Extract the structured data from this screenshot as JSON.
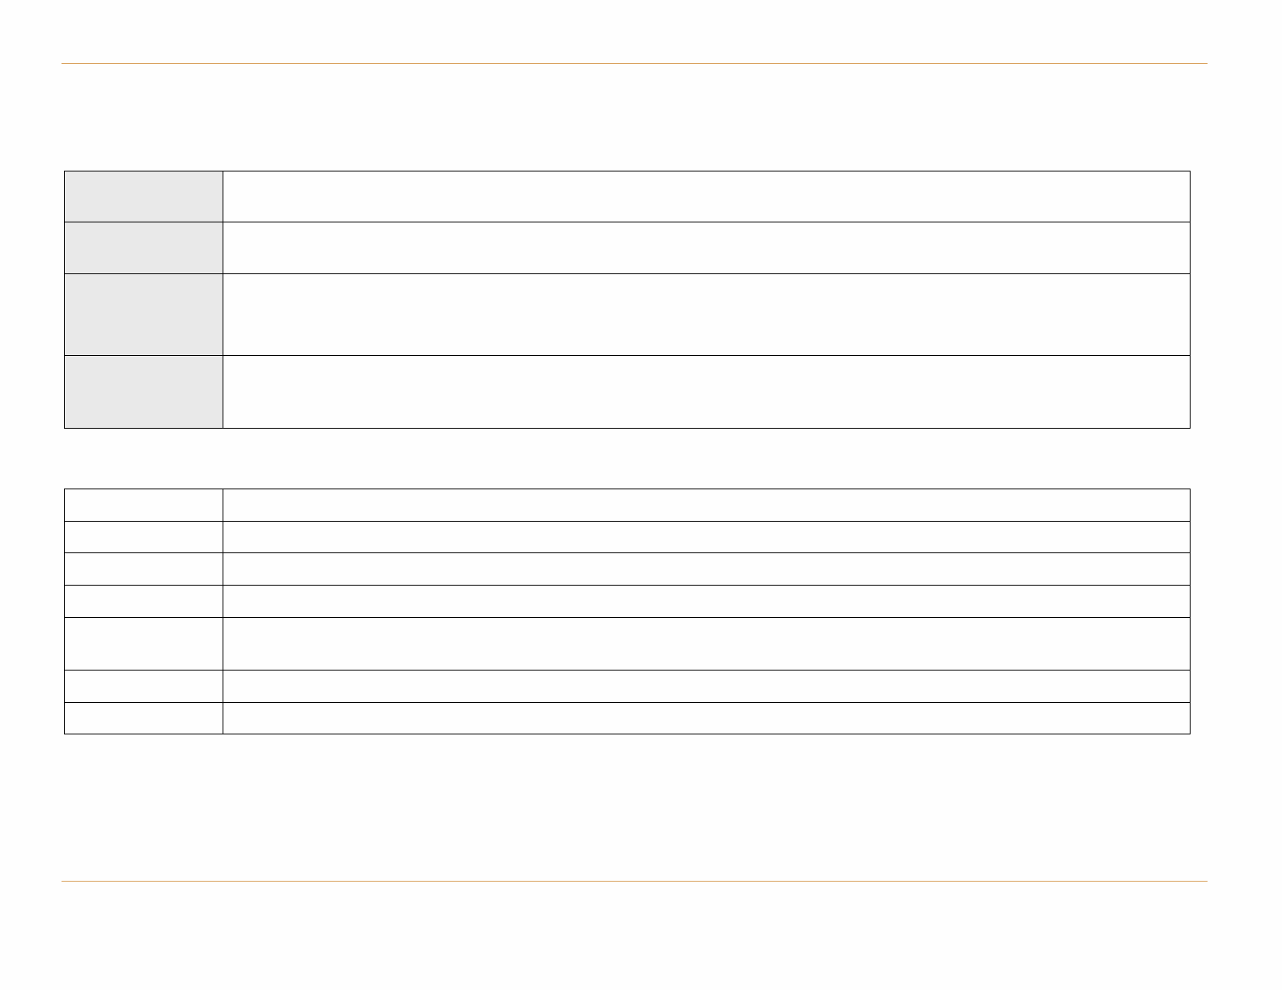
{
  "colors": {
    "rule": "#d9a25e",
    "label_cell_fill": "#e9e9e9",
    "border": "#000000",
    "background": "#fefefe"
  },
  "table1": {
    "rows": [
      [
        "",
        ""
      ],
      [
        "",
        ""
      ],
      [
        "",
        ""
      ],
      [
        "",
        ""
      ]
    ]
  },
  "table2": {
    "rows": [
      [
        "",
        ""
      ],
      [
        "",
        ""
      ],
      [
        "",
        ""
      ],
      [
        "",
        ""
      ],
      [
        "",
        ""
      ],
      [
        "",
        ""
      ],
      [
        "",
        ""
      ]
    ]
  }
}
